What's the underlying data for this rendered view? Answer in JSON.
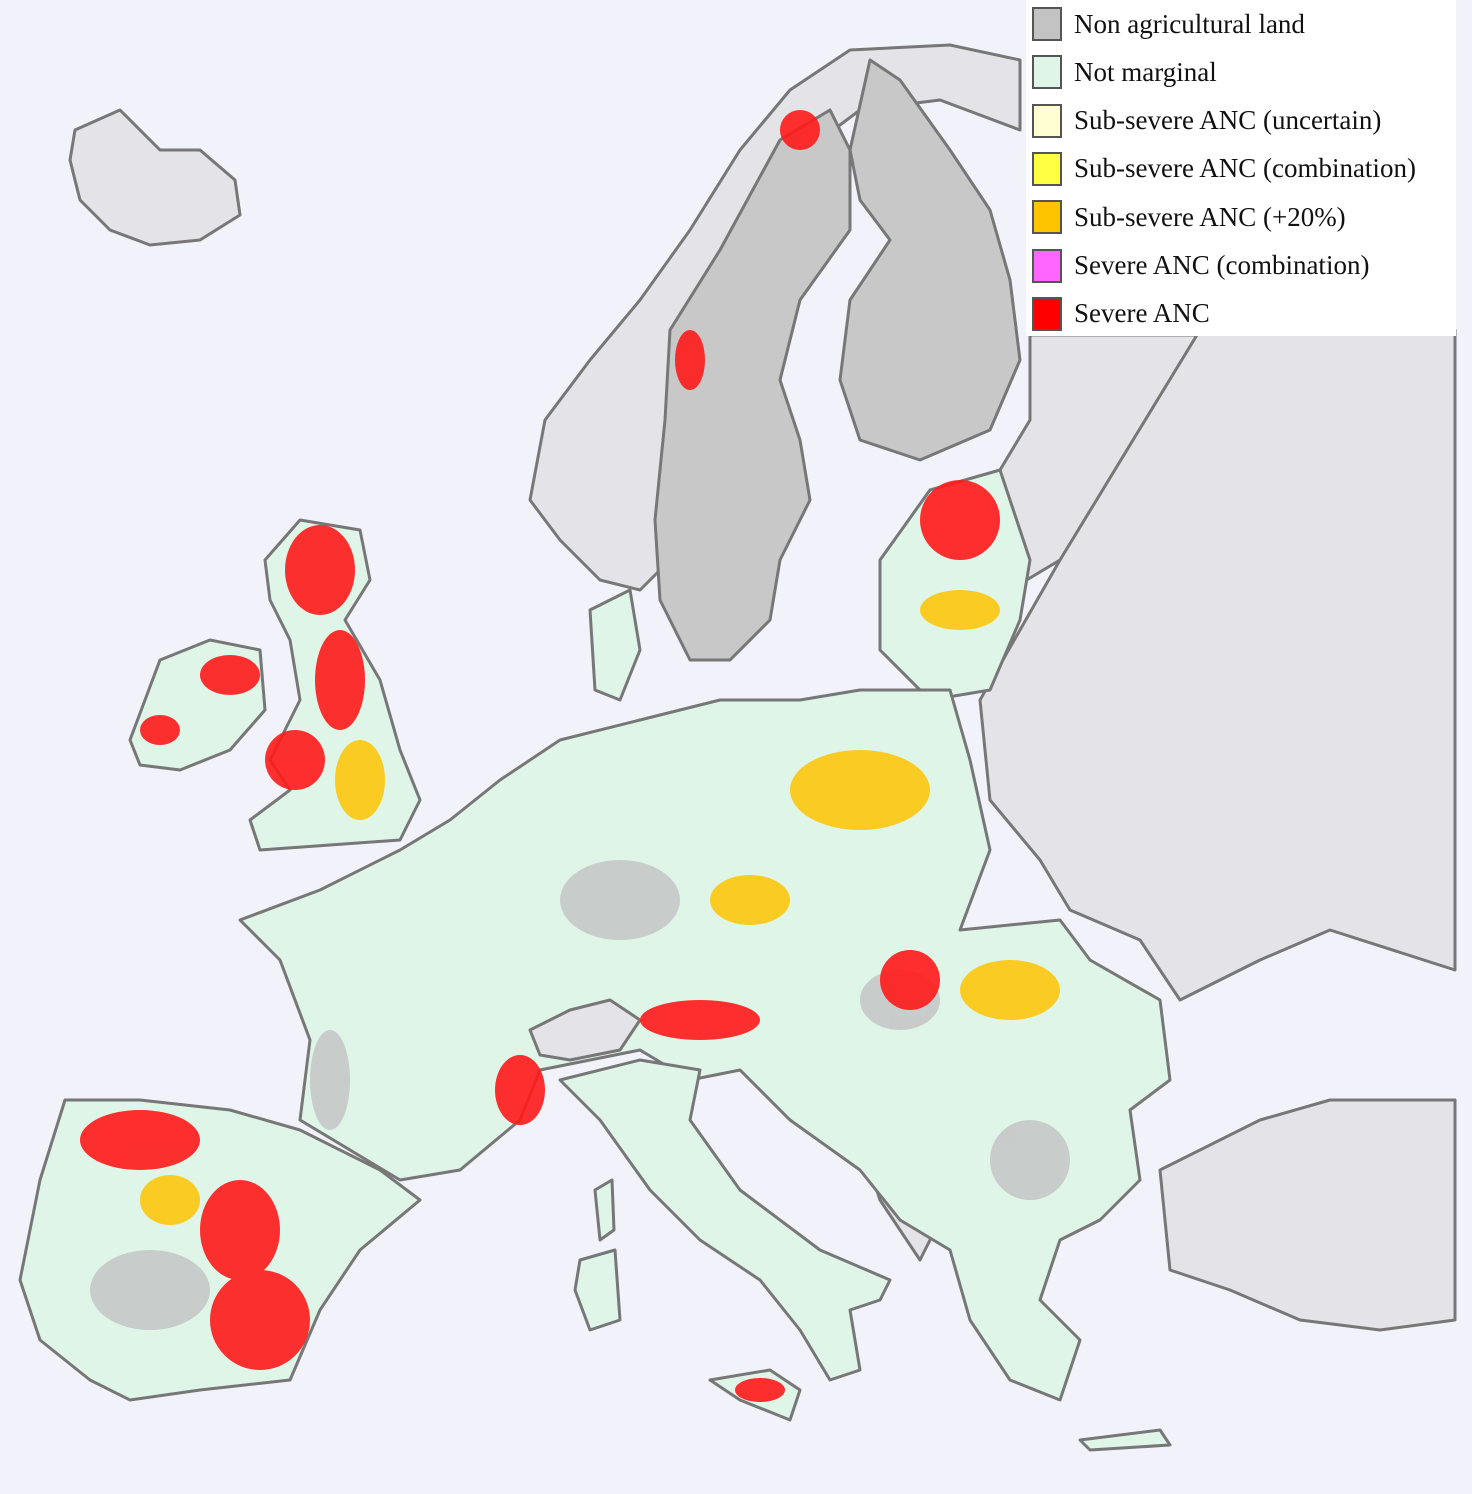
{
  "legend": {
    "items": [
      {
        "label": "Non agricultural land",
        "color": "#c3c3c3"
      },
      {
        "label": "Not marginal",
        "color": "#dff5e8"
      },
      {
        "label": "Sub-severe ANC (uncertain)",
        "color": "#ffffd2"
      },
      {
        "label": "Sub-severe ANC (combination)",
        "color": "#ffff44"
      },
      {
        "label": "Sub-severe ANC (+20%)",
        "color": "#ffc400"
      },
      {
        "label": "Severe ANC (combination)",
        "color": "#ff66ff"
      },
      {
        "label": "Severe ANC",
        "color": "#ff0000"
      }
    ]
  }
}
